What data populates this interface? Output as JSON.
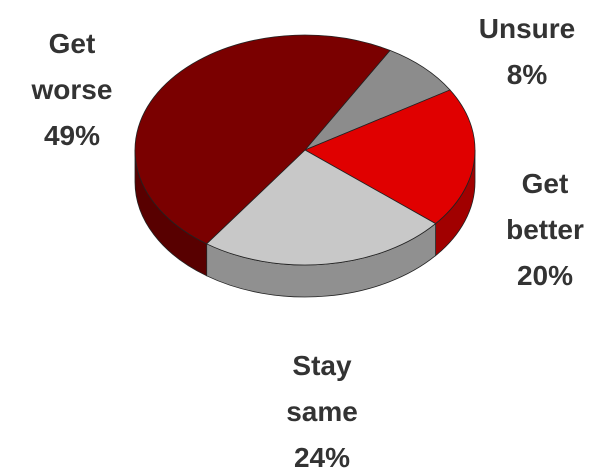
{
  "chart_data": {
    "type": "pie",
    "style": "3d",
    "title": "",
    "slices": [
      {
        "label_lines": [
          "Unsure"
        ],
        "percent_label": "8%",
        "value": 8,
        "color": "#8c8c8c"
      },
      {
        "label_lines": [
          "Get",
          "better"
        ],
        "percent_label": "20%",
        "value": 20,
        "color": "#e00000"
      },
      {
        "label_lines": [
          "Stay",
          "same"
        ],
        "percent_label": "24%",
        "value": 24,
        "color": "#c8c8c8"
      },
      {
        "label_lines": [
          "Get",
          "worse"
        ],
        "percent_label": "49%",
        "value": 49,
        "color": "#7a0000"
      }
    ]
  }
}
